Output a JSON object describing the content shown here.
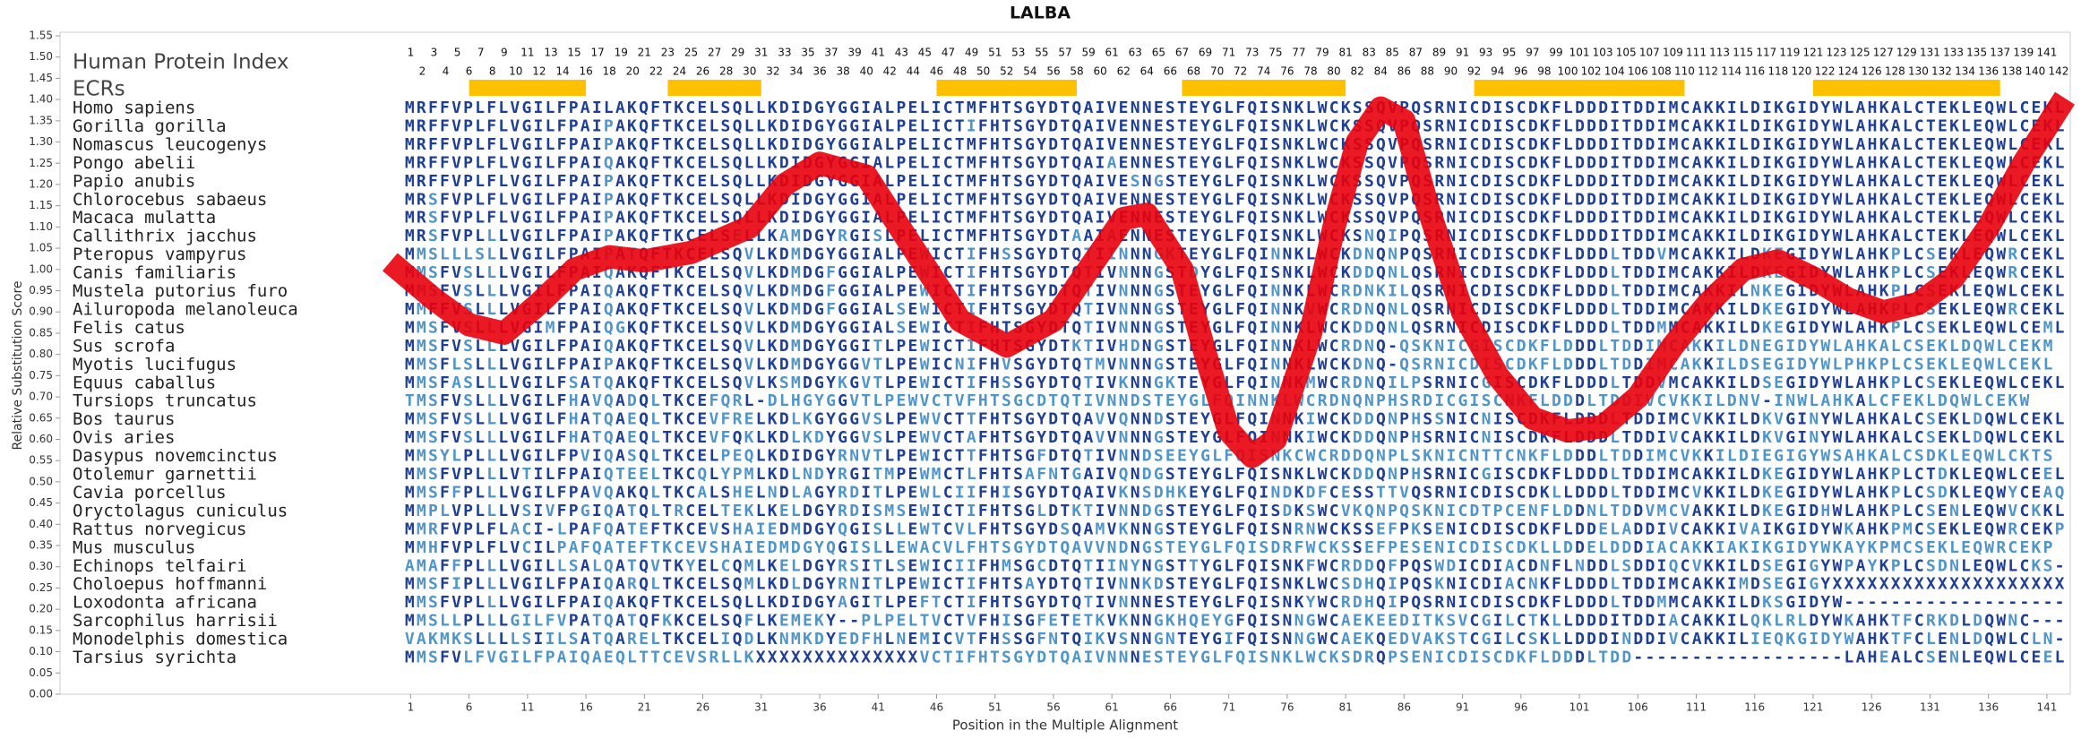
{
  "chart_data": {
    "type": "line",
    "title": "LALBA",
    "y_label": "Relative Substitution Score",
    "x_label": "Position in the Multiple Alignment",
    "index_label": "Human Protein Index",
    "ecr_label": "ECRs",
    "color": "#e8000b",
    "ecr_color": "#ffc000",
    "colors": {
      "match": "#1f3f95",
      "mismatch": "#4f95c9"
    },
    "xlim": [
      -29,
      143
    ],
    "ylim": [
      0,
      1.55
    ],
    "xticks": [
      1,
      6,
      11,
      16,
      21,
      26,
      31,
      36,
      41,
      46,
      51,
      56,
      61,
      66,
      71,
      76,
      81,
      86,
      91,
      96,
      101,
      106,
      111,
      116,
      121,
      126,
      131,
      136,
      141
    ],
    "yticks": [
      {
        "value": 0,
        "label": "0.00"
      },
      {
        "value": 0.05,
        "label": "0.05"
      },
      {
        "value": 0.1,
        "label": "0.10"
      },
      {
        "value": 0.15,
        "label": "0.15"
      },
      {
        "value": 0.2,
        "label": "0.20"
      },
      {
        "value": 0.25,
        "label": "0.25"
      },
      {
        "value": 0.3,
        "label": "0.30"
      },
      {
        "value": 0.35,
        "label": "0.35"
      },
      {
        "value": 0.4,
        "label": "0.40"
      },
      {
        "value": 0.45,
        "label": "0.45"
      },
      {
        "value": 0.5,
        "label": "0.50"
      },
      {
        "value": 0.55,
        "label": "0.55"
      },
      {
        "value": 0.6,
        "label": "0.60"
      },
      {
        "value": 0.65,
        "label": "0.65"
      },
      {
        "value": 0.7,
        "label": "0.70"
      },
      {
        "value": 0.75,
        "label": "0.75"
      },
      {
        "value": 0.8,
        "label": "0.80"
      },
      {
        "value": 0.85,
        "label": "0.85"
      },
      {
        "value": 0.9,
        "label": "0.90"
      },
      {
        "value": 0.95,
        "label": "0.95"
      },
      {
        "value": 1,
        "label": "1.00"
      },
      {
        "value": 1.05,
        "label": "1.05"
      },
      {
        "value": 1.1,
        "label": "1.10"
      },
      {
        "value": 1.15,
        "label": "1.15"
      },
      {
        "value": 1.2,
        "label": "1.20"
      },
      {
        "value": 1.25,
        "label": "1.25"
      },
      {
        "value": 1.3,
        "label": "1.30"
      },
      {
        "value": 1.35,
        "label": "1.35"
      },
      {
        "value": 1.4,
        "label": "1.40"
      },
      {
        "value": 1.45,
        "label": "1.45"
      },
      {
        "value": 1.5,
        "label": "1.50"
      },
      {
        "value": 1.55,
        "label": "1.55"
      }
    ],
    "human_index": [
      1,
      2,
      3,
      4,
      5,
      6,
      7,
      8,
      9,
      10,
      11,
      12,
      13,
      14,
      15,
      16,
      17,
      18,
      19,
      20,
      21,
      22,
      23,
      24,
      25,
      26,
      27,
      28,
      29,
      30,
      31,
      32,
      33,
      34,
      35,
      36,
      37,
      38,
      39,
      40,
      41,
      42,
      43,
      44,
      45,
      46,
      47,
      48,
      49,
      50,
      51,
      52,
      53,
      54,
      55,
      56,
      57,
      58,
      59,
      60,
      61,
      62,
      63,
      64,
      65,
      66,
      67,
      68,
      69,
      70,
      71,
      72,
      73,
      74,
      75,
      76,
      77,
      78,
      79,
      80,
      81,
      82,
      83,
      84,
      85,
      86,
      87,
      88,
      89,
      90,
      91,
      92,
      93,
      94,
      95,
      96,
      97,
      98,
      99,
      100,
      101,
      102,
      103,
      104,
      105,
      106,
      107,
      108,
      109,
      110,
      111,
      112,
      113,
      114,
      115,
      116,
      117,
      118,
      119,
      120,
      121,
      122,
      123,
      124,
      125,
      126,
      127,
      128,
      129,
      130,
      131,
      132,
      133,
      134,
      135,
      136,
      137,
      138,
      139,
      140,
      141,
      142
    ],
    "ecrs": [
      [
        6,
        16
      ],
      [
        23,
        31
      ],
      [
        46,
        58
      ],
      [
        67,
        81
      ],
      [
        92,
        110
      ],
      [
        121,
        137
      ]
    ],
    "x": [
      0,
      3,
      6,
      9,
      12,
      15,
      18,
      21,
      25,
      30,
      33,
      36,
      40,
      44,
      48,
      52,
      56,
      59,
      62,
      64,
      67,
      69,
      71,
      73,
      75,
      78,
      80,
      82,
      84,
      86,
      88,
      91,
      94,
      97,
      100,
      103,
      106,
      109,
      112,
      115,
      118,
      121,
      124,
      127,
      130,
      133,
      136,
      139,
      142
    ],
    "values": [
      1.0,
      0.93,
      0.87,
      0.85,
      0.92,
      1.0,
      1.03,
      1.02,
      1.04,
      1.1,
      1.2,
      1.25,
      1.22,
      1.05,
      0.88,
      0.82,
      0.88,
      1.0,
      1.12,
      1.13,
      1.0,
      0.8,
      0.62,
      0.56,
      0.6,
      0.85,
      1.1,
      1.3,
      1.38,
      1.35,
      1.15,
      0.9,
      0.75,
      0.65,
      0.62,
      0.63,
      0.7,
      0.82,
      0.92,
      1.0,
      1.02,
      0.98,
      0.93,
      0.9,
      0.92,
      0.98,
      1.1,
      1.25,
      1.38
    ],
    "rows": [
      {
        "species": "Homo sapiens",
        "sequence": "MRFFVPLFLVGILFPAILAKQFTKCELSQLLKDIDGYGGIALPELICTMFHTSGYDTQAIVENNESTEYGLFQISNKLWCKSSQVPQSRNICDISCDKFLDDDITDDIMCAKKILDIKGIDYWLAHKALCTEKLEQWLCEKL"
      },
      {
        "species": "Gorilla gorilla",
        "sequence": "MRFFVPLFLVGILFPAIPAKQFTKCELSQLLKDIDGYGGIALPELICTIFHTSGYDTQAIVENNESTEYGLFQISNKLWCKSSQVPQSRNICDISCDKFLDDDITDDIMCAKKILDIKGIDYWLAHKALCTEKLEQWLCEKL"
      },
      {
        "species": "Nomascus leucogenys",
        "sequence": "MRFFVPLFLVGILFPAIPAKQFTKCELSQLLKDIDGYGGIALPELICTMFHTSGYDTQAIVENNESTEYGLFQISNKLWCKSSQVPQSRNICDISCDKFLDDDITDDIMCAKKILDIKGIDYWLAHKALCTEKLEQWLCEKL"
      },
      {
        "species": "Pongo abelii",
        "sequence": "MRFFVPLFLVGILFPAIQAKQFTKCELSQLLKDIDGYGGIALPELICTMFHTSGYDTQAIAENNESTEYGLFQISNKLWCKSSQVPQSRNICDISCDKFLDDDITDDIMCAKKILDIKGIDYWLAHKALCTEKLEQWLCEKL"
      },
      {
        "species": "Papio anubis",
        "sequence": "MRFFVPLFLVGILFPAIPAKQFTKCELSQLLKDIDGYGGIALPELICTMFHTSGYDTQAIVESNGSTEYGLFQISNKLWCKSSQVPQSRNICDISCDKFLDDDITDDIMCAKKILDIKGIDYWLAHKALCTEKLEQWLCEKL"
      },
      {
        "species": "Chlorocebus sabaeus",
        "sequence": "MRSFVPLFLVGILFPAIPAKQFTKCELSQLLKDIDGYGGIALPELICTMFHTSGYDTQAIVENNESTEYGLFQISNKLWCKSSQVPQSRNICDISCDKFLDDDITDDIMCAKKILDIKGIDYWLAHKALCTEKLEQWLCEKL"
      },
      {
        "species": "Macaca mulatta",
        "sequence": "MRSFVPLFLVGILFPAIPAKQFTKCELSQLLKDIDGYGGIALPELICTMFHTSGYDTQAIVENNESTEYGLFQISNKLWCKSSQVPQSRNICDISCDKFLDDDITDDIMCAKKILDIKGIDYWLAHKALCTEKLEQWLCEKL"
      },
      {
        "species": "Callithrix jacchus",
        "sequence": "MRSFVPLLLVGILFPAIPAKQFTKCELSELLKAMDGYRGISLPELICTMFHTSGYDTAAIAENNESTEYGLFQISNKLWCKSNQIPQSRNICDISCDKFLDDDITDDIMCAKKILDIKGIDYWLAHKALCTEKLEQWLCEKL"
      },
      {
        "species": "Pteropus vampyrus",
        "sequence": "MMSLLLSLLVGILFPAIPATQFTKCELSQVLKDMDGYGGIALPEWICTIFHSSGYDTQTIINNNGKTEYGLFQINNKLWCKDNQNPQSRNICDISCDKFLDDDLTDDVMCAKKILDKEGIDYWLAHKPLCSEKLEQWRCEKL"
      },
      {
        "species": "Canis familiaris",
        "sequence": "MMSFVSLLLVGILFPAIQAKQFTKCELSQVLKDMDGFGGIALPEWICTIFHTSGYDTQTIVNNNGSTDYGLFQISNKLWCKDDQNLQSRNICDISCDKFLDDDLTDDIMCAKKILDKEGIDYWLAHKPLCSEKLEQWRCEKL"
      },
      {
        "species": "Mustela putorius furo",
        "sequence": "MMSFVSLLLVGILFPAIQAKQFTKCELSQVLKDMDGFGGIALPEWICTIFHTSGYDTQTIVNNNGSTEYGLFQINNKLWCRDNKILQSRNICDISCDKFLDDDLTDDIMCAKKILNKEGIDYWLAHKPLCSEKLEQWLCEKL"
      },
      {
        "species": "Ailuropoda melanoleuca",
        "sequence": "MMFFVSLLLVGILFPAIQAKQFTKCELSQVLKDMDGFGGIALSEWICTIFHTSGYDTQTIVNNNGSTEYGLFQINNKVWCRDNQNLQSRNICDISCDKFLDDDLTDDIMCAKKILDKEGIDYWLAHKPLCSEKLEQWRCEKL"
      },
      {
        "species": "Felis catus",
        "sequence": "MMSFVSLLLVGIMFPAIQGKQFTKCELSQVLKDMDGYGGIALSEWICTIFHTSGYDTQTIVNNNGSTEYGLFQINNKLWCKDDQNLQSRNICDISCDKFLDDDLTDDMMCAKKILDKEGIDYWLAHKPLCSEKLEQWLCEML"
      },
      {
        "species": "Sus scrofa",
        "sequence": "MMSFVSLLLVGILFPAIQAKQFTKCELSQVLKDMDGYGGITLPEWICTIFHTSGYDTKTIVHDNGSTEYGLFQINNKLWCRDNQ-QSKNICGISCDKFLDDDLTDDIMCAKKILDNEGIDYWLAHKALCSEKLDQWLCEKM"
      },
      {
        "species": "Myotis lucifugus",
        "sequence": "MMSFLSLLLVGILFPAIPAKQFTKCELSQVLKDMDGYGGVTLPEWICNIFHVSGYDTQTMVNNNGSTEYGLFQINNKLWCKDNQ-QSRNICDISCDKFLDDDLTDDIMCAKKILDSEGIDYWLPHKPLCSEKLEQWLCEKL"
      },
      {
        "species": "Equus caballus",
        "sequence": "MMSFASLLLVGILFSATQAKQFTKCELSQVLKSMDGYKGVTLPEWICTIFHSSGYDTQTIVKNNGKTEYGLFQINNKMWCRDNQILPSRNICGISCDKFLDDDLTDDVMCAKKILDSEGIDYWLAHKPLCSEKLEQWLCEKL"
      },
      {
        "species": "Tursiops truncatus",
        "sequence": "TMSFVSLLLVGILFHAVQADQLTKCEFQRL-DLHGYGGVTLPEWVCTVFHTSGCDTQTIVNNDSTEYGLFQINNKLWCRDNQNPHSRDICGISCNKFLDDDLTDDIVCVKKILDNV-INWLAHKALCFEKLDQWLCEKW"
      },
      {
        "species": "Bos taurus",
        "sequence": "MMSFVSLLLVGILFHATQAEQLTKCEVFRELKDLKGYGGVSLPEWVCTTFHTSGYDTQAVVQNNDSTEYGLFQINNKIWCKDDQNPHSSNICNISCDKFLDDDLTDDIMCVKKILDKVGINYWLAHKALCSEKLDQWLCEKL"
      },
      {
        "species": "Ovis aries",
        "sequence": "MMSFVSLLLVGILFHATQAEQLTKCEVFQKLKDLKDYGGVSLPEWVCTAFHTSGYDTQAVVNNNGSTEYGLFQINNKIWCKDDQNPHSRNICNISCDKFLDDDLTDDIVCAKKILDKVGINYWLAHKALCSEKLDQWLCEKL"
      },
      {
        "species": "Dasypus novemcinctus",
        "sequence": "MMSYLPLLLVGILFPVIQASQLTKCELPEQLKDIDGYRNVTLPEWICTTFHTSGFDTQTIVNNDSEEYGLFQISNKCWCRDDQNPLSKNICNTTCNKFLDDDLTDDIMCVKKILDIEGIGYWSAHKALCSDKLEQWLCKTS"
      },
      {
        "species": "Otolemur garnettii",
        "sequence": "MMSFVPLLLVTILFPAIQTEELTKCQLYPMLKDLNDYRGITMPEWMCTLFHTSAFNTGAIVQNDGSTEYGLFQISNKLWCKDDQNPHSRNICGISCDKFLDDDLTDDIMCAKKILDKEGIDYWLAHKPLCTDKLEQWLCEEL"
      },
      {
        "species": "Cavia porcellus",
        "sequence": "MMSFFPLLLVGILFPAVQAKQLTKCALSHELNDLAGYRDITLPEWLCIIFHISGYDTQAIVKNSDHKEYGLFQINDKDFCESSTTVQSRNICDISCDKLLDDDLTDDIMCVKKILDKEGIDYWLAHKPLCSDKLEQWYCEAQ"
      },
      {
        "species": "Oryctolagus cuniculus",
        "sequence": "MMPLVPLLLVSIVFPGIQATQLTRCELTEKLKELDGYRDISMSEWICTIFHTSGLDTKTIVNNDGSTEYGLFQISDKSWCVKQNPQSKNICDTPCENFLDDNLTDDVMCVAKKILDKEGIDHWLAHKPLCSENLEQWVCKKL"
      },
      {
        "species": "Rattus norvegicus",
        "sequence": "MMRFVPLFLACI-LPAFQATEFTKCEVSHAIEDMDGYQGISLLEWTCVLFHTSGYDSQAMVKNNGSTEYGLFQISNRNWCKSSEFPKSENICDISCDKFLDDELADDIVCAKKIVAIKGIDYWKAHKPMCSEKLEQWRCEKP"
      },
      {
        "species": "Mus musculus",
        "sequence": "MMHFVPLFLVCILPAFQATEFTKCEVSHAIEDMDGYQGISLLEWACVLFHTSGYDTQAVVNDNGSTEYGLFQISDRFWCKSSEFPESENICDISCDKLLDDELDDDIACAKKIAKIKGIDYWKAYKPMCSEKLEQWRCEKP"
      },
      {
        "species": "Echinops telfairi",
        "sequence": "AMAFFPLLLVGILLSALQATQVTKYELCQMLKELDGYRSITLSEWICIIFHMSGCDTQTIINYNGSTTYGLFQISNKFWCRDDQFPQSWDICDIACDNFLNDDLSDDIQCVKKILDSEGIGYWPAYKPLCSDNLEQWLCKS-"
      },
      {
        "species": "Choloepus hoffmanni",
        "sequence": "MMSFIPLLLVGILFPAIQARQLTKCELSQMLKDLDGYRNITLPEWICTIFHTSAYDTQTIVNNKDSTEYGLFQISNKLWCSDHQIPQSKNICDIACNKFLDDDLTDDIMCAKKIMDSEGIGYXXXXXXXXXXXXXXXXXXXX"
      },
      {
        "species": "Loxodonta africana",
        "sequence": "MMSFVPLLLVGILFPAIQAKQFTKCELSQLLKDIDGYAGITLPEFTCTIFHTSGYDTQTIVNNNESTEYGLFQISNKYWCRDHQIPQSRNICDISCDKFLDDDLTDDMMCAKKILDKSGIDYW-------------------"
      },
      {
        "species": "Sarcophilus harrisii",
        "sequence": "MMSLLPLLLGILFVPATQATQFKKCELSQFLKEMEKY--PLPELTVCTVFHISGFETETKVKNNGKHQEYGFQISNNGWCAEKEEDITKSVCGILCTKLLDDDITDDIACAKKILQKLRLDYWKAHKTFCRKDLDQWNC---"
      },
      {
        "species": "Monodelphis domestica",
        "sequence": "VAKMKSLLLLSIILSATQARELTKCELIQDLKNMKDYEDFHLNEMICVTFHSSGFNTQIKVSNNGNTEYGIFQISNNGWCAEKQEDVAKSTCGILCSKLLDDDINDDIVCAKKILIEQKGIDYWAHKTFCLENLDQWLCLN-"
      },
      {
        "species": "Tarsius syrichta",
        "sequence": "MMSFVLFVGILFPAIQAEQLTTCEVSRLLKXXXXXXXXXXXXXXVCTIFHTSGYDTQAIVNNNESTEYGLFQISNKLWCKSDRQPSENICDISCDKFLDDDLTDD------------------LAHEALCSENLEQWLCEEL"
      }
    ]
  }
}
